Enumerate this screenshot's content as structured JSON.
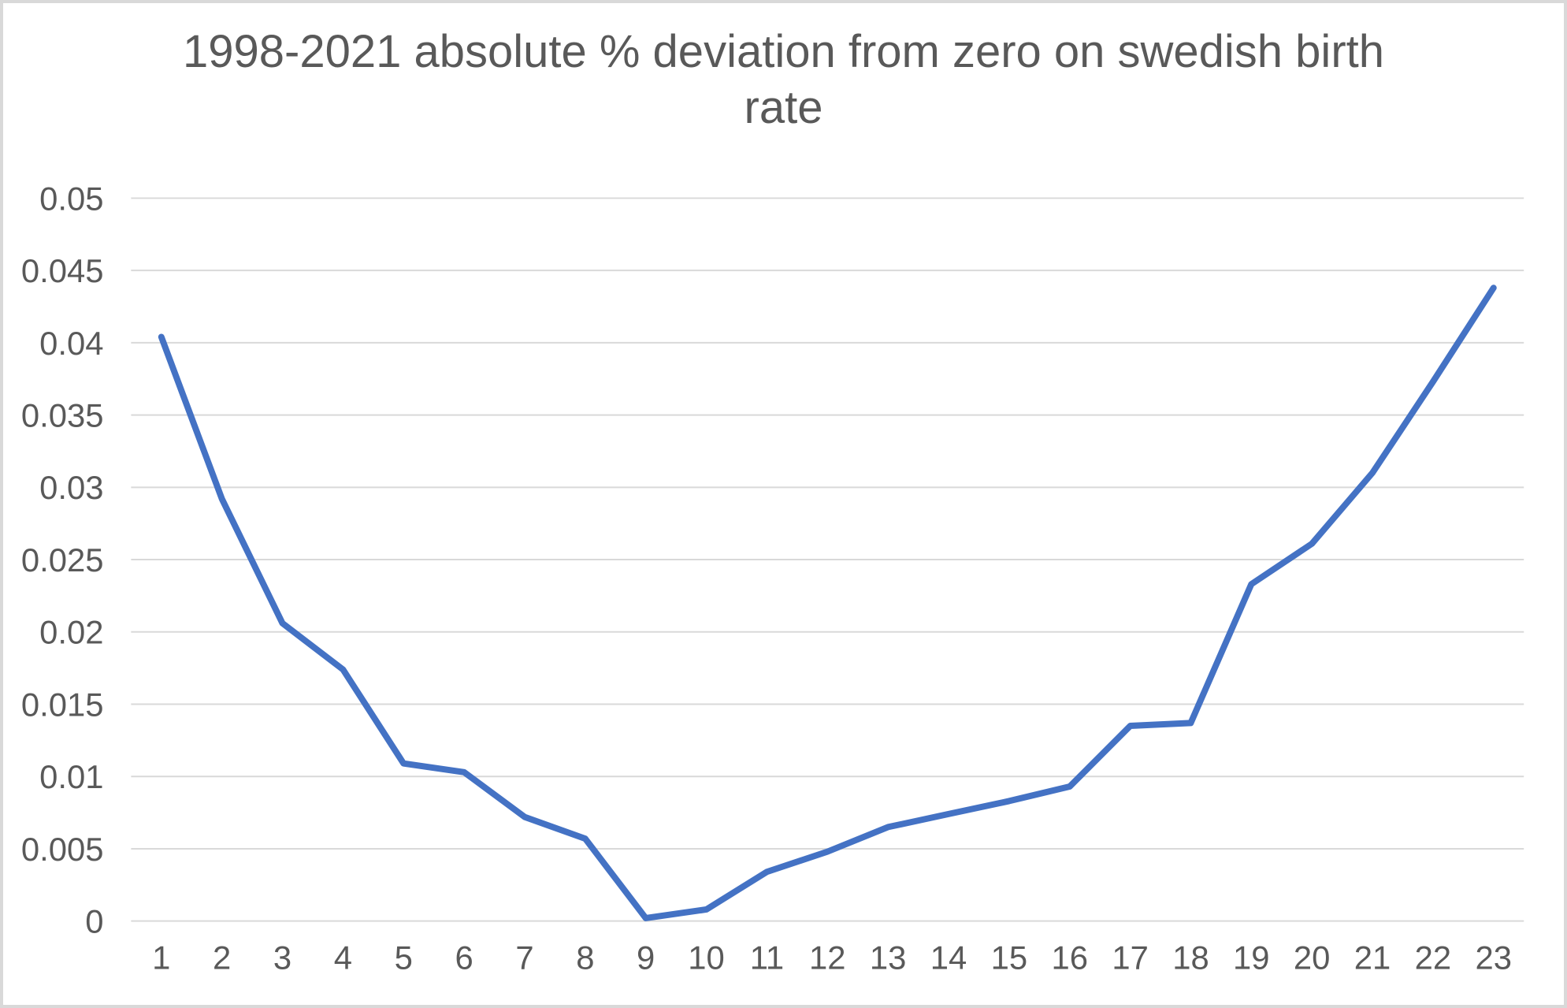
{
  "title_lines": [
    "1998-2021 absolute % deviation from zero on swedish birth",
    "rate"
  ],
  "colors": {
    "line": "#4472C4",
    "gridline": "#D9D9D9",
    "text": "#595959",
    "background": "#FFFFFF",
    "frame_border": "#D9D9D9"
  },
  "chart_data": {
    "type": "line",
    "title": "1998-2021 absolute % deviation from zero on swedish birth rate",
    "xlabel": "",
    "ylabel": "",
    "categories": [
      1,
      2,
      3,
      4,
      5,
      6,
      7,
      8,
      9,
      10,
      11,
      12,
      13,
      14,
      15,
      16,
      17,
      18,
      19,
      20,
      21,
      22,
      23
    ],
    "values": [
      0.0404,
      0.0292,
      0.0206,
      0.0174,
      0.0109,
      0.0103,
      0.0072,
      0.0057,
      0.0002,
      0.0008,
      0.0034,
      0.0048,
      0.0065,
      0.0074,
      0.0083,
      0.0093,
      0.0135,
      0.0137,
      0.0233,
      0.0261,
      0.031,
      0.0373,
      0.0438
    ],
    "ylim": [
      0,
      0.05
    ],
    "ytick_step": 0.005,
    "y_tick_labels": [
      "0",
      "0.005",
      "0.01",
      "0.015",
      "0.02",
      "0.025",
      "0.03",
      "0.035",
      "0.04",
      "0.045",
      "0.05"
    ],
    "grid": true,
    "legend": false,
    "series_name": "absolute % deviation",
    "line_style": "solid"
  }
}
